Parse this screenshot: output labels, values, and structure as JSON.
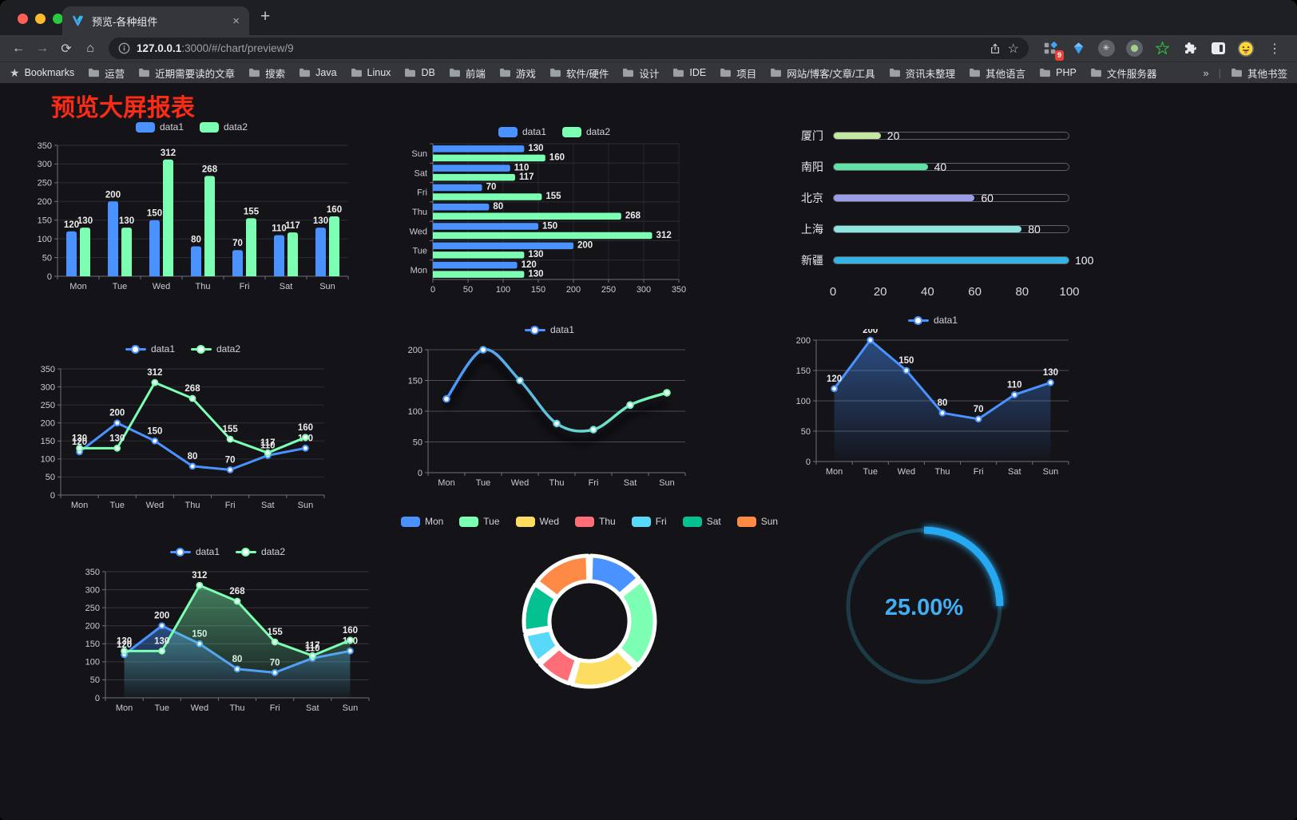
{
  "browser": {
    "traffic_lights": {
      "close": "#ff5f57",
      "minimize": "#febb2e",
      "zoom": "#28c840"
    },
    "tab": {
      "title": "预览-各种组件"
    },
    "url": {
      "host": "127.0.0.1",
      "path": ":3000/#/chart/preview/9"
    },
    "extension_badge": "9",
    "bookmarks_bar": {
      "star_label": "Bookmarks",
      "folders": [
        "运营",
        "近期需要读的文章",
        "搜索",
        "Java",
        "Linux",
        "DB",
        "前端",
        "游戏",
        "软件/硬件",
        "设计",
        "IDE",
        "项目",
        "网站/博客/文章/工具",
        "资讯未整理",
        "其他语言",
        "PHP",
        "文件服务器"
      ],
      "overflow_glyph": "»",
      "divider_glyph": "|",
      "other_bookmarks": "其他书签"
    },
    "glyphs": {
      "back": "←",
      "forward": "→",
      "reload": "⟳",
      "home": "⌂",
      "star": "☆",
      "bookmark_star": "★",
      "close_tab": "×",
      "new_tab": "+",
      "menu": "⋮"
    },
    "icons": {
      "favicon": "blue-teal-v-logo",
      "info-icon": "circle-i",
      "share-icon": "box-with-up-arrow",
      "star-icon": "outline-star",
      "ext-grid-icon": "gray-grid-with-blue-diamond",
      "ext-kite-icon": "blue-kite",
      "ext-asterisk-icon": "gray-circle-asterisk",
      "ext-record-icon": "gray-circle-green-dot",
      "ext-star-icon": "green-outline-star",
      "ext-puzzle-icon": "white-puzzle-piece",
      "ext-split-icon": "white-split-square",
      "avatar-icon": "emoji-face",
      "folder-icon": "gray-folder"
    }
  },
  "page": {
    "title": "预览大屏报表",
    "title_color": "#fb2b15",
    "background": "#131318"
  },
  "palette": {
    "data1": "#4992ff",
    "data2": "#7cffb2"
  },
  "chart_data": [
    {
      "id": "bar-grouped",
      "type": "bar",
      "categories": [
        "Mon",
        "Tue",
        "Wed",
        "Thu",
        "Fri",
        "Sat",
        "Sun"
      ],
      "series": [
        {
          "name": "data1",
          "color": "#4992ff",
          "values": [
            120,
            200,
            150,
            80,
            70,
            110,
            130
          ]
        },
        {
          "name": "data2",
          "color": "#7cffb2",
          "values": [
            130,
            130,
            312,
            268,
            155,
            117,
            160
          ]
        }
      ],
      "ylim": [
        0,
        350
      ],
      "yticks": [
        0,
        50,
        100,
        150,
        200,
        250,
        300,
        350
      ],
      "legend": [
        "data1",
        "data2"
      ],
      "legend_position": "top",
      "grid": true,
      "value_labels": true
    },
    {
      "id": "bar-horizontal",
      "type": "bar-horizontal",
      "categories": [
        "Mon",
        "Tue",
        "Wed",
        "Thu",
        "Fri",
        "Sat",
        "Sun"
      ],
      "display_order_top_to_bottom": [
        "Sun",
        "Sat",
        "Fri",
        "Thu",
        "Wed",
        "Tue",
        "Mon"
      ],
      "series": [
        {
          "name": "data1",
          "color": "#4992ff",
          "values": [
            120,
            200,
            150,
            80,
            70,
            110,
            130
          ]
        },
        {
          "name": "data2",
          "color": "#7cffb2",
          "values": [
            130,
            130,
            312,
            268,
            155,
            117,
            160
          ]
        }
      ],
      "xlim": [
        0,
        350
      ],
      "xticks": [
        0,
        50,
        100,
        150,
        200,
        250,
        300,
        350
      ],
      "legend": [
        "data1",
        "data2"
      ],
      "legend_position": "top",
      "grid": true,
      "value_labels": true
    },
    {
      "id": "progress-bars",
      "type": "progress",
      "items": [
        {
          "label": "厦门",
          "value": 20,
          "color": "#c4e7a1"
        },
        {
          "label": "南阳",
          "value": 40,
          "color": "#5fe3a2"
        },
        {
          "label": "北京",
          "value": 60,
          "color": "#9a9ee8"
        },
        {
          "label": "上海",
          "value": 80,
          "color": "#8ee4e1"
        },
        {
          "label": "新疆",
          "value": 100,
          "color": "#35b3e4"
        }
      ],
      "xlim": [
        0,
        100
      ],
      "xticks": [
        0,
        20,
        40,
        60,
        80,
        100
      ]
    },
    {
      "id": "line-two-series",
      "type": "line",
      "categories": [
        "Mon",
        "Tue",
        "Wed",
        "Thu",
        "Fri",
        "Sat",
        "Sun"
      ],
      "series": [
        {
          "name": "data1",
          "color": "#4992ff",
          "values": [
            120,
            200,
            150,
            80,
            70,
            110,
            130
          ],
          "area": false
        },
        {
          "name": "data2",
          "color": "#7cffb2",
          "values": [
            130,
            130,
            312,
            268,
            155,
            117,
            160
          ],
          "area": false
        }
      ],
      "ylim": [
        0,
        350
      ],
      "yticks": [
        0,
        50,
        100,
        150,
        200,
        250,
        300,
        350
      ],
      "legend": [
        "data1",
        "data2"
      ],
      "value_labels": true,
      "grid_color": "#2d2d34"
    },
    {
      "id": "line-gradient-shadow",
      "type": "line-gradient",
      "categories": [
        "Mon",
        "Tue",
        "Wed",
        "Thu",
        "Fri",
        "Sat",
        "Sun"
      ],
      "series": [
        {
          "name": "data1",
          "values": [
            120,
            200,
            150,
            80,
            70,
            110,
            130
          ],
          "gradient": [
            "#4992ff",
            "#7cffb2"
          ]
        }
      ],
      "ylim": [
        0,
        200
      ],
      "yticks": [
        0,
        50,
        100,
        150,
        200
      ],
      "legend": [
        "data1"
      ],
      "smooth": true,
      "shadow": true,
      "value_labels": false,
      "grid_color": "#4b4e54"
    },
    {
      "id": "area-single",
      "type": "line",
      "categories": [
        "Mon",
        "Tue",
        "Wed",
        "Thu",
        "Fri",
        "Sat",
        "Sun"
      ],
      "series": [
        {
          "name": "data1",
          "color": "#4992ff",
          "values": [
            120,
            200,
            150,
            80,
            70,
            110,
            130
          ],
          "area": true
        }
      ],
      "ylim": [
        0,
        200
      ],
      "yticks": [
        0,
        50,
        100,
        150,
        200
      ],
      "legend": [
        "data1"
      ],
      "value_labels": true,
      "grid_color": "#4b4e54"
    },
    {
      "id": "line-area-two",
      "type": "line",
      "categories": [
        "Mon",
        "Tue",
        "Wed",
        "Thu",
        "Fri",
        "Sat",
        "Sun"
      ],
      "series": [
        {
          "name": "data1",
          "color": "#4992ff",
          "values": [
            120,
            200,
            150,
            80,
            70,
            110,
            130
          ],
          "area": true
        },
        {
          "name": "data2",
          "color": "#7cffb2",
          "values": [
            130,
            130,
            312,
            268,
            155,
            117,
            160
          ],
          "area": true
        }
      ],
      "ylim": [
        0,
        350
      ],
      "yticks": [
        0,
        50,
        100,
        150,
        200,
        250,
        300,
        350
      ],
      "legend": [
        "data1",
        "data2"
      ],
      "value_labels": true,
      "grid_color": "#36393f"
    },
    {
      "id": "donut",
      "type": "pie",
      "categories": [
        "Mon",
        "Tue",
        "Wed",
        "Thu",
        "Fri",
        "Sat",
        "Sun"
      ],
      "values": [
        120,
        200,
        150,
        80,
        70,
        110,
        130
      ],
      "colors": [
        "#4992ff",
        "#7cffb2",
        "#fddd60",
        "#ff6e76",
        "#58d9f9",
        "#05c091",
        "#ff8a45"
      ],
      "inner_radius_ratio": 0.61,
      "legend_position": "top"
    },
    {
      "id": "gauge",
      "type": "gauge",
      "value": 25,
      "label": "25.00%",
      "color": "#27a9f1",
      "track_color": "#1d3b46",
      "text_color": "#41aef3"
    }
  ]
}
